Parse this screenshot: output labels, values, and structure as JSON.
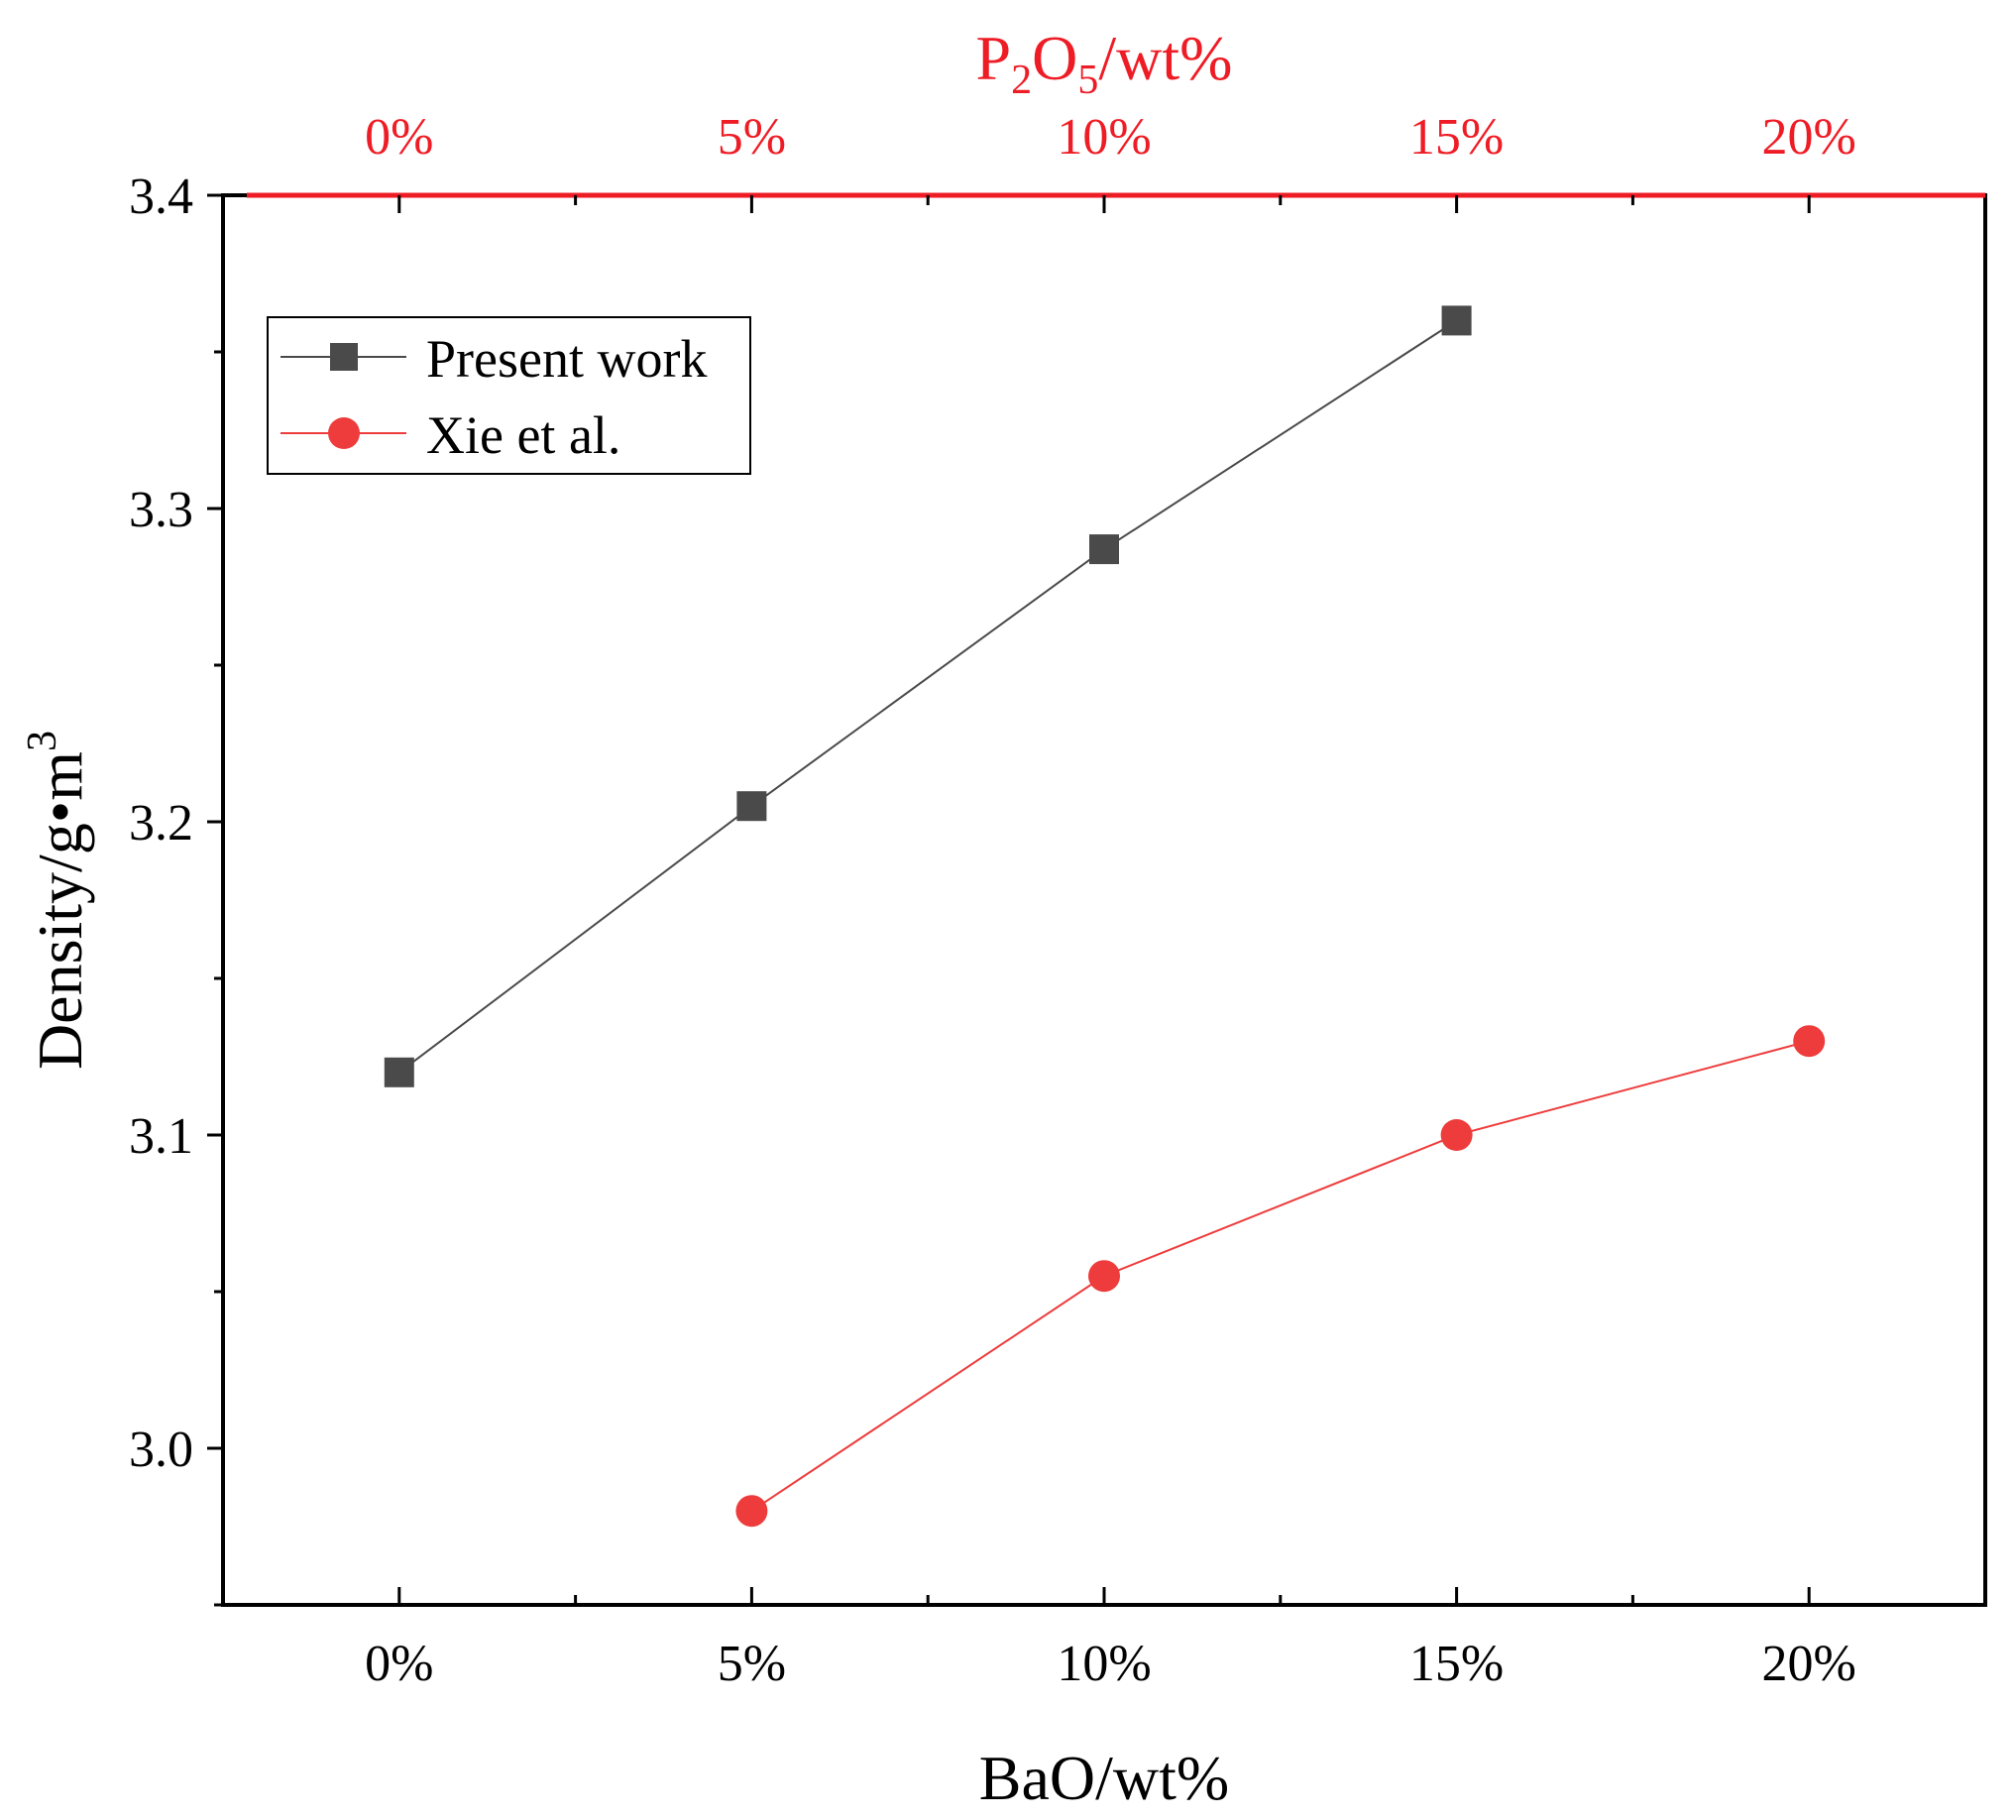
{
  "chart_data": {
    "type": "line",
    "categories": [
      "0%",
      "5%",
      "10%",
      "15%",
      "20%"
    ],
    "x": [
      0,
      5,
      10,
      15,
      20
    ],
    "xlim": [
      -2.5,
      22.5
    ],
    "ylim": [
      2.95,
      3.4
    ],
    "yticks": [
      3.0,
      3.1,
      3.2,
      3.3,
      3.4
    ],
    "ytick_labels": [
      "3.0",
      "3.1",
      "3.2",
      "3.3",
      "3.4"
    ],
    "xlabel": "BaO/wt%",
    "ylabel": {
      "main": "Density/g•m",
      "sup": "3"
    },
    "top_axis": {
      "label_parts": {
        "p": "P",
        "sub1": "2",
        "o": "O",
        "sub2": "5",
        "rest": "/wt%"
      },
      "tick_labels": [
        "0%",
        "5%",
        "10%",
        "15%",
        "20%"
      ],
      "color": "#ee1c25"
    },
    "series": [
      {
        "name": "Present work",
        "x": [
          0,
          5,
          10,
          15
        ],
        "values": [
          3.12,
          3.205,
          3.287,
          3.36
        ],
        "color": "#4a4a4a",
        "marker": "square"
      },
      {
        "name": "Xie et al.",
        "x": [
          5,
          10,
          15,
          20
        ],
        "values": [
          2.98,
          3.055,
          3.1,
          3.13
        ],
        "color": "#ee3b3b",
        "marker": "circle"
      }
    ],
    "legend": {
      "position": "top-left",
      "entries": [
        "Present work",
        "Xie et al."
      ]
    }
  }
}
